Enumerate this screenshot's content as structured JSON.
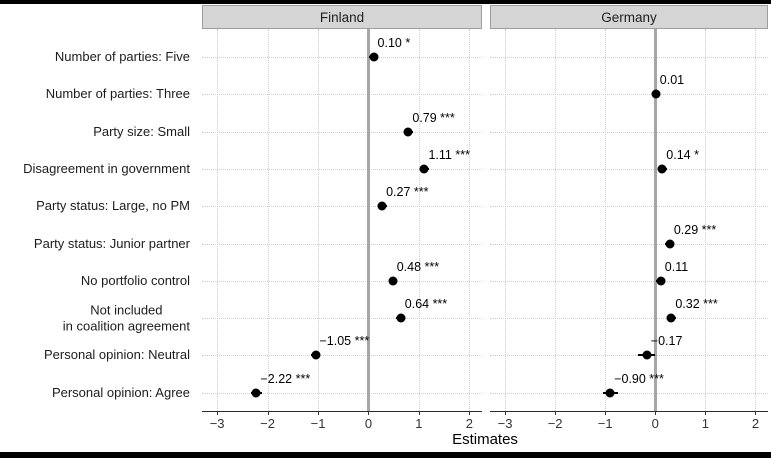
{
  "chart_data": {
    "type": "scatter",
    "subtype": "coefficient-dot-whisker",
    "title": "",
    "xlabel": "Estimates",
    "xlim": [
      -3.3,
      2.25
    ],
    "zero_line": 0,
    "grid": "dotted",
    "legend": "none",
    "x_ticks": [
      {
        "value": -3,
        "label": "−3"
      },
      {
        "value": -2,
        "label": "−2"
      },
      {
        "value": -1,
        "label": "−1"
      },
      {
        "value": 0,
        "label": "0"
      },
      {
        "value": 1,
        "label": "1"
      },
      {
        "value": 2,
        "label": "2"
      }
    ],
    "categories": [
      "Number of parties: Five",
      "Number of parties: Three",
      "Party size: Small",
      "Disagreement in government",
      "Party status: Large, no PM",
      "Party status: Junior partner",
      "No portfolio control",
      "Not included\nin coalition agreement",
      "Personal opinion: Neutral",
      "Personal opinion: Agree"
    ],
    "panels": [
      {
        "title": "Finland",
        "points": [
          {
            "category": 0,
            "estimate": 0.1,
            "ci_low": 0.01,
            "ci_high": 0.19,
            "label": "0.10 *"
          },
          {
            "category": 2,
            "estimate": 0.79,
            "ci_low": 0.7,
            "ci_high": 0.88,
            "label": "0.79 ***"
          },
          {
            "category": 3,
            "estimate": 1.11,
            "ci_low": 1.03,
            "ci_high": 1.19,
            "label": "1.11 ***"
          },
          {
            "category": 4,
            "estimate": 0.27,
            "ci_low": 0.18,
            "ci_high": 0.36,
            "label": "0.27 ***"
          },
          {
            "category": 6,
            "estimate": 0.48,
            "ci_low": 0.4,
            "ci_high": 0.56,
            "label": "0.48 ***"
          },
          {
            "category": 7,
            "estimate": 0.64,
            "ci_low": 0.55,
            "ci_high": 0.73,
            "label": "0.64 ***"
          },
          {
            "category": 8,
            "estimate": -1.05,
            "ci_low": -1.14,
            "ci_high": -0.96,
            "label": "−1.05 ***"
          },
          {
            "category": 9,
            "estimate": -2.22,
            "ci_low": -2.33,
            "ci_high": -2.11,
            "label": "−2.22 ***"
          }
        ]
      },
      {
        "title": "Germany",
        "points": [
          {
            "category": 1,
            "estimate": 0.01,
            "ci_low": -0.07,
            "ci_high": 0.09,
            "label": "0.01"
          },
          {
            "category": 3,
            "estimate": 0.14,
            "ci_low": 0.05,
            "ci_high": 0.23,
            "label": "0.14 *"
          },
          {
            "category": 5,
            "estimate": 0.29,
            "ci_low": 0.2,
            "ci_high": 0.38,
            "label": "0.29 ***"
          },
          {
            "category": 6,
            "estimate": 0.11,
            "ci_low": 0.02,
            "ci_high": 0.2,
            "label": "0.11"
          },
          {
            "category": 7,
            "estimate": 0.32,
            "ci_low": 0.23,
            "ci_high": 0.41,
            "label": "0.32 ***"
          },
          {
            "category": 8,
            "estimate": -0.17,
            "ci_low": -0.34,
            "ci_high": -0.01,
            "label": "−0.17"
          },
          {
            "category": 9,
            "estimate": -0.9,
            "ci_low": -1.05,
            "ci_high": -0.75,
            "label": "−0.90 ***"
          }
        ]
      }
    ]
  },
  "colors": {
    "background": "#ffffff",
    "strip_background": "#d5d5d5",
    "strip_border": "#9e9e9e",
    "gridline": "#cfcfcf",
    "zero_line": "#a6a6a6",
    "point": "#000000",
    "frame_bars": "#000000"
  }
}
